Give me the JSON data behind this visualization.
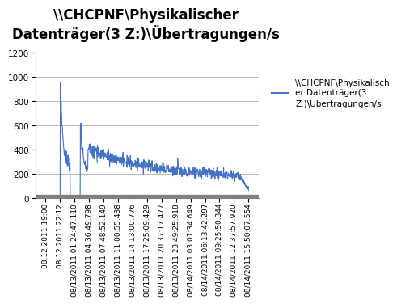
{
  "title_line1": "\\\\CHCPNF\\Physikalischer",
  "title_line2": "Datenträger(3 Z:)\\\\Übertragungen/s",
  "title": "\\\\CHCPNF\\Physikalischer\nDatenträger(3 Z:)\\Übertragungen/s",
  "legend_label": "\\\\CHCPNF\\Physikalisch\ner Datenträger(3\nZ:)\\Übertragungen/s",
  "line_color": "#4472C4",
  "line_width": 0.8,
  "ylim": [
    0,
    1200
  ],
  "yticks": [
    0,
    200,
    400,
    600,
    800,
    1000,
    1200
  ],
  "xtick_labels": [
    "08.12.2011 19:00",
    "08.12.2011 22:12",
    "08/13/2011 01:24:47.110",
    "08/13/2011 04:36:49.798",
    "08/13/2011 07:48:52.149",
    "08/13/2011 11:00:55.438",
    "08/13/2011 14:13:00.776",
    "08/13/2011 17:25:09.429",
    "08/13/2011 20:37:17.477",
    "08/13/2011 23:49:25.918",
    "08/14/2011 03:01:34.649",
    "08/14/2011 06:13:42.297",
    "08/14/2011 09:25:50.344",
    "08/14/2011 12:37:57.920",
    "08/14/2011 15:50:07.554"
  ],
  "background_color": "#ffffff",
  "grid_color": "#b0b0b0",
  "title_fontsize": 12,
  "legend_fontsize": 7.5,
  "tick_fontsize": 6.5,
  "ytick_fontsize": 7.5
}
